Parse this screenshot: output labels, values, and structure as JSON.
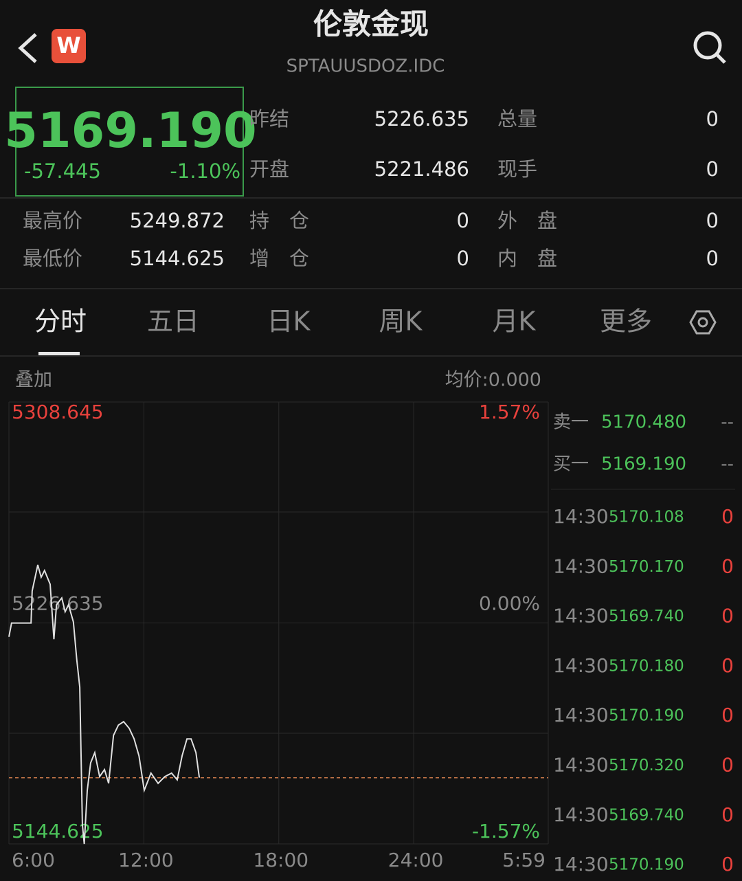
{
  "header": {
    "title": "伦敦金现",
    "code": "SPTAUUSDOZ.IDC",
    "badge": "W"
  },
  "quote": {
    "price": "5169.190",
    "change": "-57.445",
    "change_pct": "-1.10%"
  },
  "stats": [
    {
      "label": "昨结",
      "value": "5226.635"
    },
    {
      "label": "总量",
      "value": "0"
    },
    {
      "label": "开盘",
      "value": "5221.486"
    },
    {
      "label": "现手",
      "value": "0"
    },
    {
      "label": "最高价",
      "value": "5249.872"
    },
    {
      "label": "持　仓",
      "value": "0"
    },
    {
      "label": "外　盘",
      "value": "0"
    },
    {
      "label": "最低价",
      "value": "5144.625"
    },
    {
      "label": "增　仓",
      "value": "0"
    },
    {
      "label": "内　盘",
      "value": "0"
    }
  ],
  "tabs": [
    "分时",
    "五日",
    "日K",
    "周K",
    "月K",
    "更多"
  ],
  "chart_header": {
    "overlay": "叠加",
    "avg": "均价:0.000"
  },
  "chart_data": {
    "type": "line",
    "color": "#e0e0e0",
    "last_color": "#c8784a",
    "last": 5169.19,
    "x": [
      0,
      7,
      59,
      62,
      77,
      86,
      95,
      110,
      120,
      127,
      141,
      150,
      159,
      172,
      181,
      189,
      196,
      201,
      209,
      218,
      229,
      242,
      255,
      266,
      279,
      292,
      306,
      321,
      334,
      347,
      361,
      379,
      398,
      416,
      434,
      449,
      462,
      475,
      486,
      499,
      508
    ],
    "values": [
      5221.5,
      5226.6,
      5226.6,
      5238.5,
      5248.2,
      5243.6,
      5246.1,
      5241.0,
      5220.6,
      5233.4,
      5235.9,
      5230.8,
      5233.4,
      5227.0,
      5213.0,
      5202.8,
      5151.7,
      5144.6,
      5164.5,
      5174.7,
      5178.5,
      5169.6,
      5172.2,
      5167.1,
      5184.9,
      5188.7,
      5190.0,
      5187.5,
      5183.6,
      5177.3,
      5164.5,
      5170.9,
      5167.1,
      5169.6,
      5170.9,
      5168.4,
      5177.3,
      5183.6,
      5183.6,
      5178.5,
      5169.2
    ],
    "xlim": [
      0,
      1439
    ],
    "xticks": [
      {
        "value": 0,
        "label": "6:00"
      },
      {
        "value": 360,
        "label": "12:00"
      },
      {
        "value": 720,
        "label": "18:00"
      },
      {
        "value": 1080,
        "label": "24:00"
      },
      {
        "value": 1439,
        "label": "5:59"
      }
    ],
    "ylim": [
      5144.625,
      5308.645
    ],
    "yticks": [
      5144.625,
      5226.635,
      5308.645
    ],
    "y2lim": [
      -1.57,
      1.57
    ],
    "y2ticks": [
      {
        "value": -1.57,
        "label": "-1.57%"
      },
      {
        "value": 0,
        "label": "0.00%"
      },
      {
        "value": 1.57,
        "label": "1.57%"
      }
    ]
  },
  "order_book": [
    {
      "side": "卖一",
      "price": "5170.480",
      "volume": "--"
    },
    {
      "side": "买一",
      "price": "5169.190",
      "volume": "--"
    }
  ],
  "trades": [
    {
      "time": "14:30",
      "price": "5170.108",
      "volume": "0"
    },
    {
      "time": "14:30",
      "price": "5170.170",
      "volume": "0"
    },
    {
      "time": "14:30",
      "price": "5169.740",
      "volume": "0"
    },
    {
      "time": "14:30",
      "price": "5170.180",
      "volume": "0"
    },
    {
      "time": "14:30",
      "price": "5170.190",
      "volume": "0"
    },
    {
      "time": "14:30",
      "price": "5170.320",
      "volume": "0"
    },
    {
      "time": "14:30",
      "price": "5169.740",
      "volume": "0"
    },
    {
      "time": "14:30",
      "price": "5170.190",
      "volume": "0"
    }
  ]
}
